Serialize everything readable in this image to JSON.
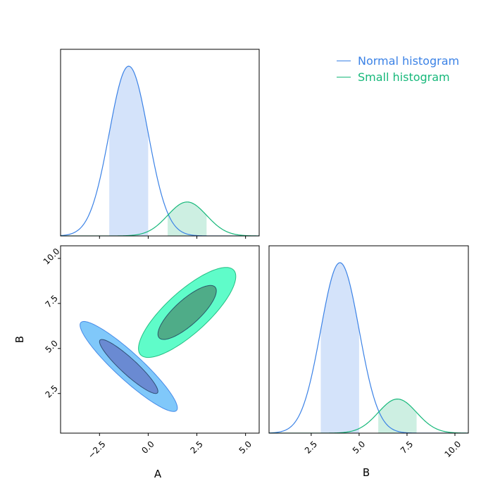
{
  "chart_data": {
    "type": "corner",
    "parameters": [
      {
        "name": "A",
        "range": [
          -4.5,
          5.7
        ],
        "ticks": [
          -2.5,
          0.0,
          2.5,
          5.0
        ],
        "tick_labels": [
          "−2.5",
          "0.0",
          "2.5",
          "5.0"
        ]
      },
      {
        "name": "B",
        "range": [
          0.3,
          10.7
        ],
        "ticks": [
          2.5,
          5.0,
          7.5,
          10.0
        ],
        "tick_labels": [
          "2.5",
          "5.0",
          "7.5",
          "10.0"
        ]
      }
    ],
    "xlabel_A": "A",
    "xlabel_B": "B",
    "ylabel_B": "B",
    "legend_position": "top-right",
    "series": [
      {
        "name": "Normal histogram",
        "color": "#3b82e6",
        "fill": "#d4e3fa",
        "contour_outer_fill": "#80c8fa",
        "contour_inner_fill": "#6a8ad2",
        "A": {
          "mean": -1.0,
          "sd": 1.0,
          "interval": [
            -2.0,
            0.0
          ]
        },
        "B": {
          "mean": 4.0,
          "sd": 1.0,
          "interval": [
            3.0,
            5.0
          ]
        },
        "correlation": -0.92,
        "peak_height": 1.0
      },
      {
        "name": "Small histogram",
        "color": "#16b87a",
        "fill": "#cdefe2",
        "contour_outer_fill": "#5ffcc9",
        "contour_inner_fill": "#4fac88",
        "A": {
          "mean": 2.0,
          "sd": 1.0,
          "interval": [
            1.0,
            3.0
          ]
        },
        "B": {
          "mean": 7.0,
          "sd": 1.0,
          "interval": [
            6.0,
            8.0
          ]
        },
        "correlation": 0.8,
        "peak_height": 0.2
      }
    ]
  }
}
